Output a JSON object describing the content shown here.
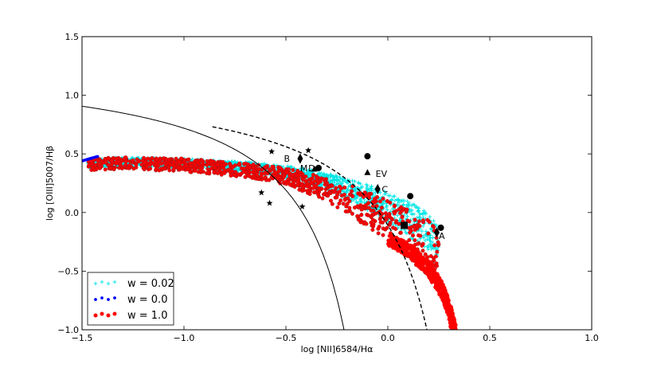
{
  "chart_data": {
    "type": "scatter",
    "xlabel": "log [NII]6584/Hα",
    "ylabel": "log [OIII]5007/Hβ",
    "xlim": [
      -1.5,
      1.0
    ],
    "ylim": [
      -1.0,
      1.5
    ],
    "x_ticks": [
      -1.5,
      -1.0,
      -0.5,
      0.0,
      0.5,
      1.0
    ],
    "x_tick_labels": [
      "−1.5",
      "−1.0",
      "−0.5",
      "0.0",
      "0.5",
      "1.0"
    ],
    "y_ticks": [
      -1.0,
      -0.5,
      0.0,
      0.5,
      1.0,
      1.5
    ],
    "y_tick_labels": [
      "−1.0",
      "−0.5",
      "0.0",
      "0.5",
      "1.0",
      "1.5"
    ],
    "grid": false,
    "legend_position": "bottom-left",
    "series": [
      {
        "name": "w = 0.02",
        "color": "#00e5e5",
        "marker": "plus",
        "band_upper": [
          [
            -1.47,
            0.46
          ],
          [
            -1.3,
            0.47
          ],
          [
            -1.0,
            0.46
          ],
          [
            -0.7,
            0.43
          ],
          [
            -0.5,
            0.4
          ],
          [
            -0.3,
            0.34
          ],
          [
            -0.1,
            0.24
          ],
          [
            0.05,
            0.14
          ],
          [
            0.18,
            0.02
          ],
          [
            0.25,
            -0.12
          ]
        ],
        "band_lower": [
          [
            -1.47,
            0.38
          ],
          [
            -1.3,
            0.39
          ],
          [
            -1.0,
            0.38
          ],
          [
            -0.7,
            0.35
          ],
          [
            -0.5,
            0.3
          ],
          [
            -0.3,
            0.2
          ],
          [
            -0.1,
            0.02
          ],
          [
            0.05,
            -0.14
          ],
          [
            0.18,
            -0.3
          ],
          [
            0.24,
            -0.38
          ]
        ]
      },
      {
        "name": "w = 0.0",
        "color": "#0000ff",
        "marker": "dot",
        "points": [
          [
            -1.5,
            0.44
          ],
          [
            -1.48,
            0.45
          ],
          [
            -1.46,
            0.46
          ],
          [
            -1.44,
            0.47
          ],
          [
            -1.42,
            0.48
          ]
        ]
      },
      {
        "name": "w = 1.0",
        "color": "#ff0000",
        "marker": "dot",
        "band_upper": [
          [
            -1.47,
            0.46
          ],
          [
            -1.3,
            0.47
          ],
          [
            -1.0,
            0.46
          ],
          [
            -0.7,
            0.42
          ],
          [
            -0.5,
            0.38
          ],
          [
            -0.3,
            0.3
          ],
          [
            -0.1,
            0.18
          ],
          [
            0.05,
            0.06
          ],
          [
            0.18,
            -0.04
          ],
          [
            0.25,
            -0.12
          ]
        ],
        "band_lower": [
          [
            -1.47,
            0.36
          ],
          [
            -1.3,
            0.37
          ],
          [
            -1.0,
            0.35
          ],
          [
            -0.7,
            0.3
          ],
          [
            -0.5,
            0.24
          ],
          [
            -0.3,
            0.1
          ],
          [
            -0.1,
            -0.12
          ],
          [
            0.05,
            -0.3
          ],
          [
            0.2,
            -0.55
          ],
          [
            0.3,
            -0.82
          ],
          [
            0.34,
            -1.0
          ]
        ]
      }
    ],
    "curves": [
      {
        "name": "Kauffmann demarcation",
        "style": "solid",
        "formula": "0.61/(x-0.05)+1.3",
        "x_range": [
          -1.5,
          -0.2
        ]
      },
      {
        "name": "Kewley maximum starburst",
        "style": "dashed",
        "formula": "0.61/(x-0.47)+1.19",
        "x_range": [
          -0.86,
          0.74
        ]
      }
    ],
    "observations": {
      "stars": [
        [
          -0.57,
          0.52
        ],
        [
          -0.39,
          0.53
        ],
        [
          -0.62,
          0.17
        ],
        [
          -0.58,
          0.08
        ],
        [
          -0.42,
          0.05
        ]
      ],
      "circles": [
        [
          -0.34,
          0.38
        ],
        [
          -0.1,
          0.48
        ],
        [
          0.11,
          0.14
        ],
        [
          0.26,
          -0.13
        ]
      ],
      "triangles": [
        [
          -0.1,
          0.34
        ],
        [
          -0.36,
          0.37
        ]
      ],
      "diamonds": [
        [
          -0.43,
          0.46
        ],
        [
          -0.05,
          0.2
        ],
        [
          0.24,
          -0.17
        ]
      ],
      "squares": [
        [
          0.08,
          -0.11
        ]
      ]
    },
    "annotations": [
      {
        "text": "B",
        "x": -0.51,
        "y": 0.46
      },
      {
        "text": "M",
        "x": -0.43,
        "y": 0.38
      },
      {
        "text": "D",
        "x": -0.39,
        "y": 0.38
      },
      {
        "text": "EV",
        "x": -0.06,
        "y": 0.33
      },
      {
        "text": "C",
        "x": -0.03,
        "y": 0.2
      },
      {
        "text": "A",
        "x": 0.25,
        "y": -0.2
      }
    ]
  }
}
